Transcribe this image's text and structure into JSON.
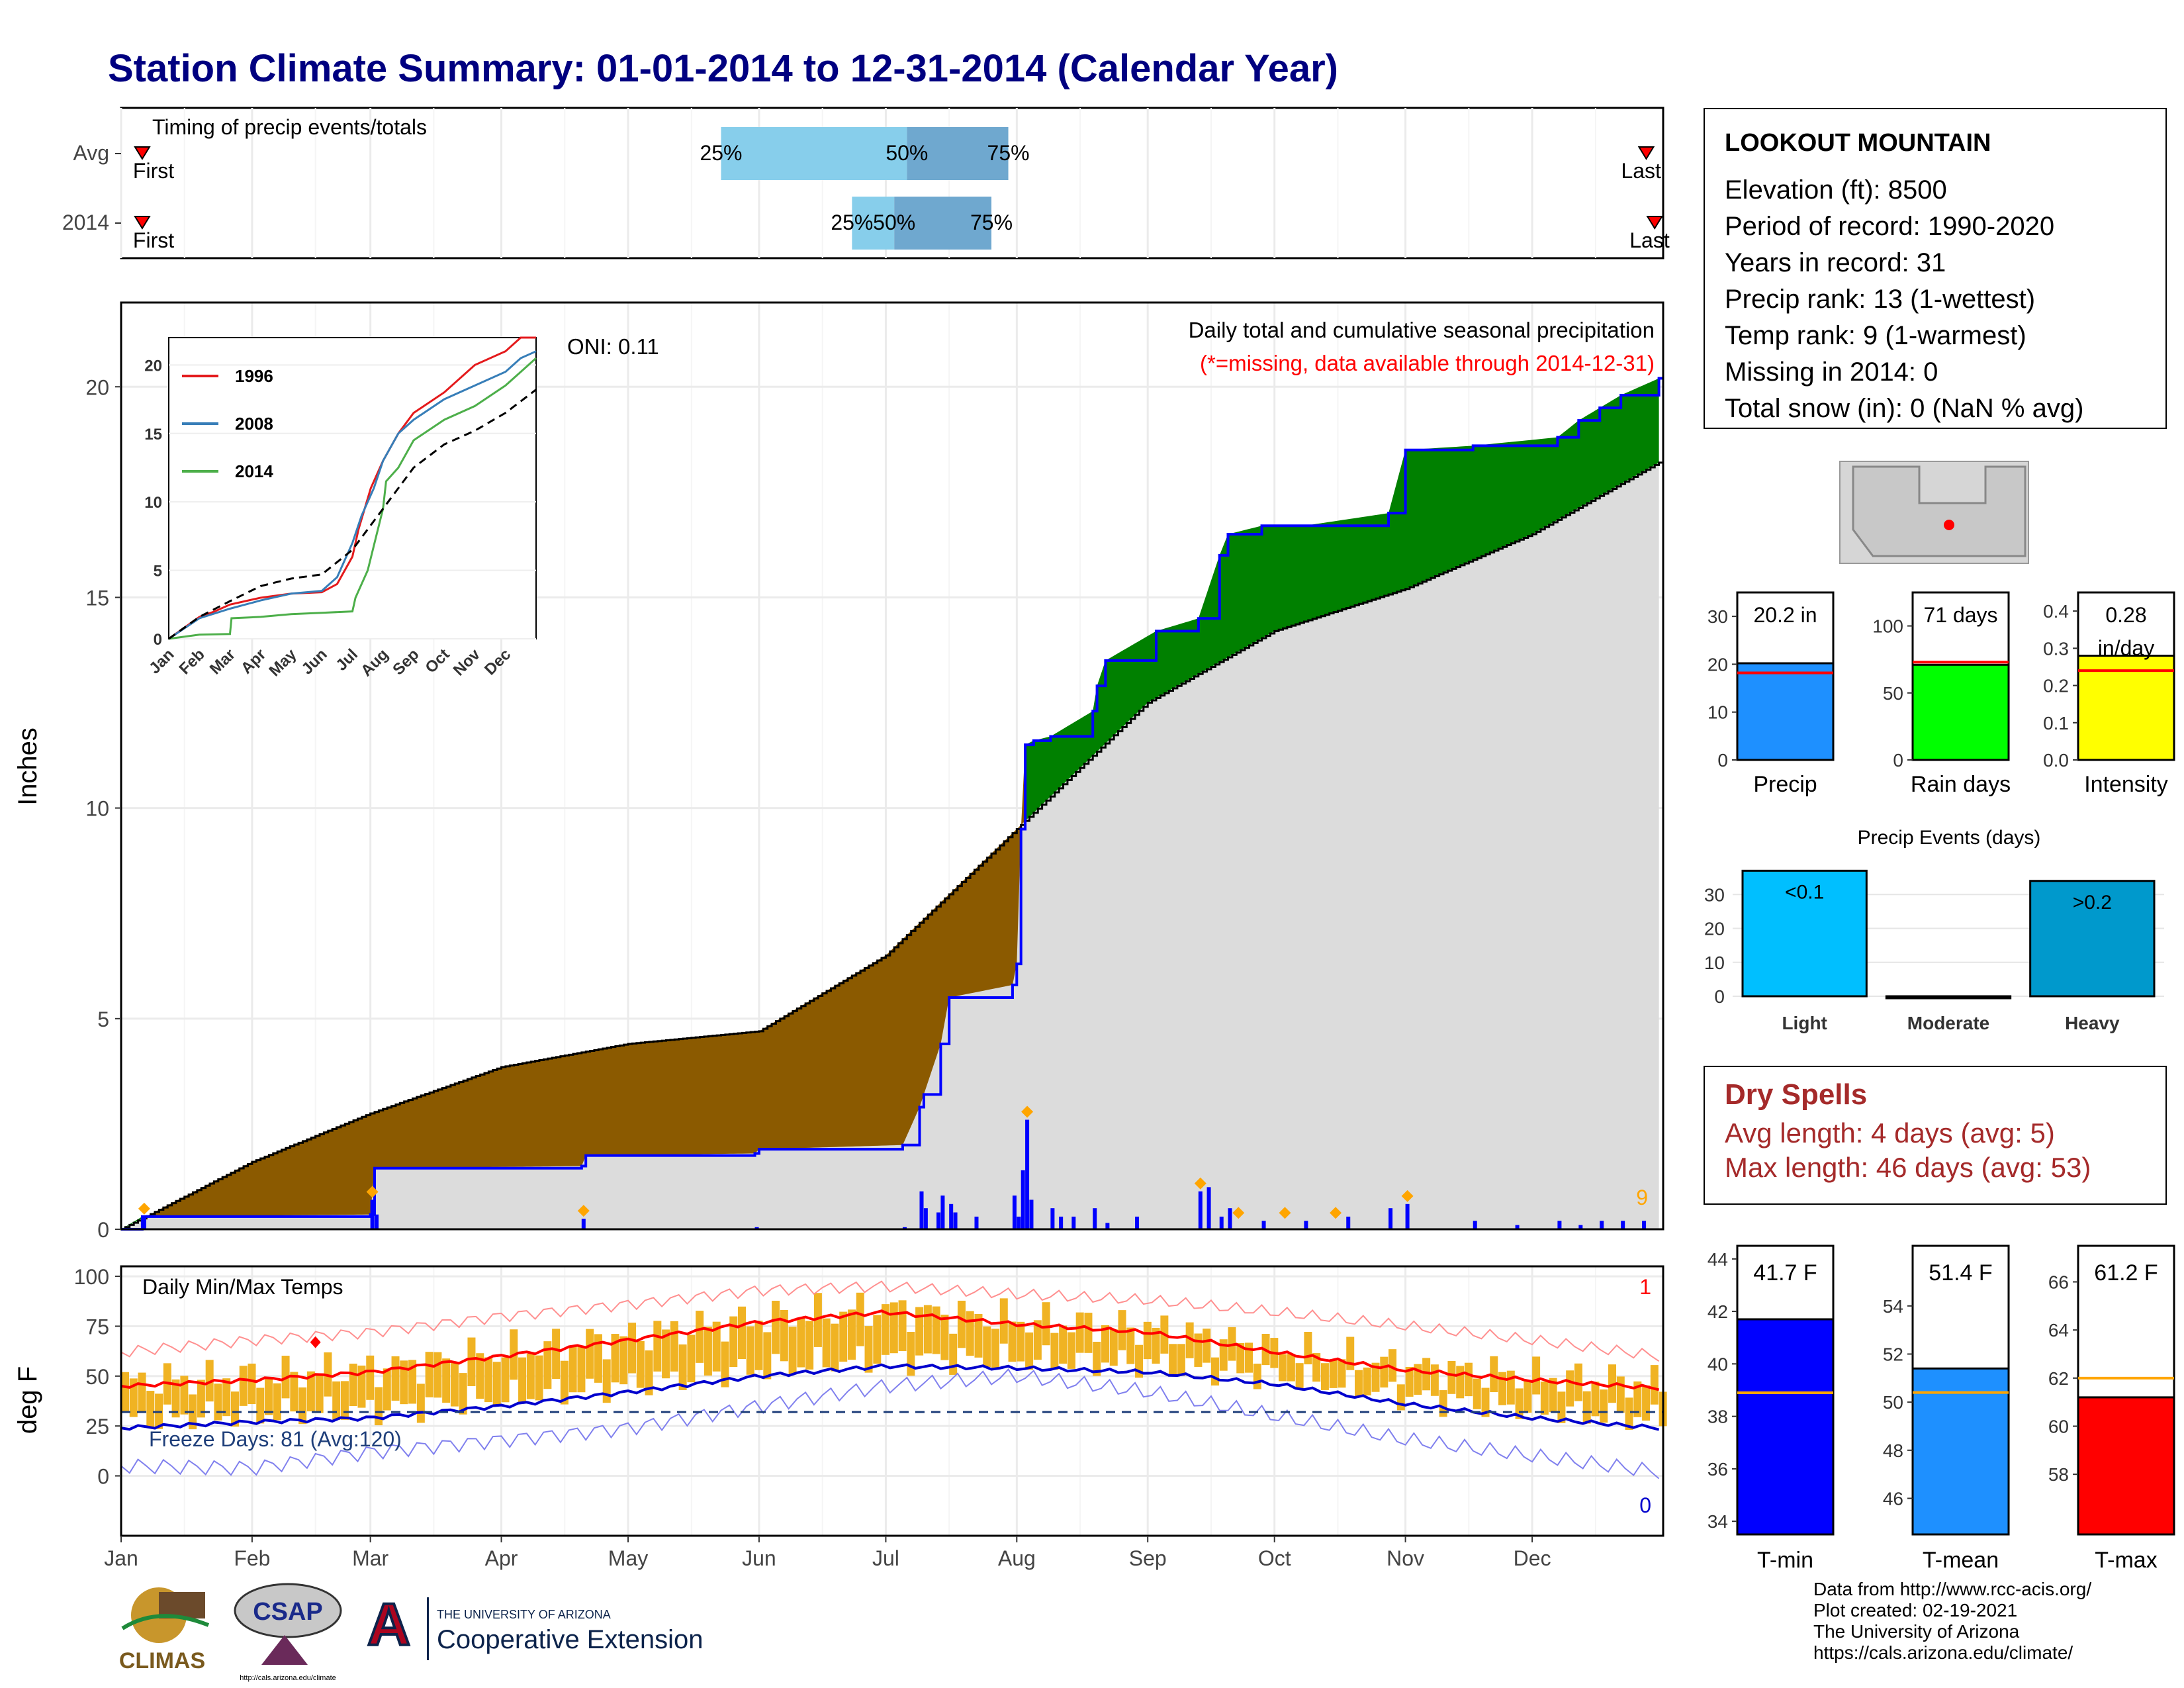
{
  "title": "Station Climate Summary: 01-01-2014 to 12-31-2014 (Calendar Year)",
  "timing": {
    "caption": "Timing of precip events/totals",
    "rows": [
      {
        "label": "Avg",
        "first": "First",
        "last": "Last",
        "p25": "2014-05-23",
        "p50": "2014-07-06",
        "p75": "2014-07-30",
        "first_date": "2014-01-06",
        "last_date": "2014-12-28"
      },
      {
        "label": "2014",
        "first": "First",
        "last": "Last",
        "p25": "2014-06-23",
        "p50": "2014-07-03",
        "p75": "2014-07-26",
        "first_date": "2014-01-06",
        "last_date": "2014-12-30"
      }
    ],
    "pct_labels": [
      "25%",
      "50%",
      "75%"
    ],
    "light_color": "#87ceeb",
    "dark_color": "#6fa8cf"
  },
  "precip_panel": {
    "ylabel": "Inches",
    "yticks": [
      0,
      5,
      10,
      15,
      20
    ],
    "ylim": [
      0,
      22
    ],
    "caption1": "Daily total and cumulative seasonal precipitation",
    "caption2": "(*=missing, data available through 2014-12-31)",
    "oni": "ONI: 0.11",
    "count_label": "9",
    "colors": {
      "above": "#008000",
      "below": "#8b5a00",
      "normal_fill": "#dcdcdc",
      "obs_line": "#0000ff",
      "bars": "#0000ff",
      "markers": "#ffa500"
    },
    "normal_cumulative": {
      "months": [
        0,
        1,
        2,
        3,
        4,
        5,
        6,
        7,
        8,
        9,
        10,
        11,
        12
      ],
      "values": [
        0,
        1.6,
        2.75,
        3.85,
        4.4,
        4.7,
        6.5,
        9.5,
        12.5,
        14.2,
        15.2,
        16.5,
        18.2
      ]
    },
    "observed_cumulative": {
      "days": [
        0,
        5,
        59,
        60,
        109,
        110,
        150,
        151,
        185,
        189,
        190,
        194,
        196,
        211,
        212,
        213,
        214,
        216,
        220,
        230,
        231,
        233,
        245,
        255,
        260,
        262,
        270,
        280,
        300,
        304,
        320,
        340,
        345,
        350,
        355,
        364
      ],
      "values": [
        0,
        0.3,
        0.35,
        1.45,
        1.5,
        1.75,
        1.8,
        1.9,
        2.0,
        2.9,
        3.2,
        4.4,
        5.5,
        5.8,
        6.3,
        9.5,
        11.5,
        11.6,
        11.7,
        12.3,
        12.9,
        13.5,
        14.2,
        14.5,
        16.0,
        16.5,
        16.7,
        16.7,
        17.0,
        18.5,
        18.6,
        18.8,
        19.2,
        19.5,
        19.8,
        20.2
      ]
    },
    "daily_bars": {
      "days": [
        5,
        59,
        60,
        109,
        150,
        185,
        189,
        190,
        193,
        194,
        196,
        197,
        202,
        211,
        212,
        213,
        214,
        215,
        220,
        222,
        225,
        230,
        233,
        240,
        255,
        257,
        260,
        262,
        270,
        280,
        290,
        300,
        304,
        320,
        330,
        340,
        345,
        350,
        355,
        360
      ],
      "values": [
        0.3,
        0.7,
        0.35,
        0.25,
        0.05,
        0.05,
        0.9,
        0.5,
        0.4,
        0.8,
        0.6,
        0.4,
        0.3,
        0.8,
        0.3,
        1.4,
        2.6,
        0.7,
        0.5,
        0.3,
        0.3,
        0.5,
        0.15,
        0.3,
        0.9,
        1.0,
        0.3,
        0.5,
        0.2,
        0.2,
        0.3,
        0.5,
        0.6,
        0.2,
        0.1,
        0.2,
        0.1,
        0.2,
        0.2,
        0.2
      ]
    },
    "marker_days": [
      5,
      59,
      109,
      214,
      255,
      264,
      275,
      287,
      304
    ]
  },
  "inset": {
    "yticks": [
      0,
      5,
      10,
      15,
      20
    ],
    "xlabels": [
      "Jan",
      "Feb",
      "Mar",
      "Apr",
      "May",
      "Jun",
      "Jul",
      "Aug",
      "Sep",
      "Oct",
      "Nov",
      "Dec"
    ],
    "legend": [
      {
        "name": "1996",
        "color": "#e41a1c"
      },
      {
        "name": "2008",
        "color": "#377eb8"
      },
      {
        "name": "2014",
        "color": "#4daf4a"
      }
    ],
    "series": [
      {
        "name": "1996",
        "x": [
          0,
          0.5,
          1,
          1.5,
          2,
          3,
          4,
          5,
          5.5,
          6,
          6.2,
          6.6,
          7,
          7.5,
          8,
          9,
          10,
          11,
          11.5,
          12
        ],
        "values": [
          0,
          0.8,
          1.6,
          2,
          2.5,
          3,
          3.3,
          3.4,
          4,
          6,
          8,
          11,
          13,
          15,
          16.5,
          18,
          20,
          21,
          22,
          22
        ]
      },
      {
        "name": "2008",
        "x": [
          0,
          1,
          2,
          3,
          4,
          5,
          5.5,
          6,
          6.3,
          6.7,
          7,
          7.5,
          8,
          9,
          10,
          11,
          11.5,
          12
        ],
        "values": [
          0,
          1.5,
          2.2,
          2.8,
          3.3,
          3.5,
          4.5,
          7,
          9,
          11,
          13,
          15,
          16,
          17.5,
          18.5,
          19.5,
          20.5,
          21
        ]
      },
      {
        "name": "2014",
        "x": [
          0,
          1,
          2,
          2.05,
          3,
          4,
          5,
          6,
          6.1,
          6.5,
          7,
          7.1,
          7.5,
          8,
          9,
          10,
          11,
          11.5,
          12
        ],
        "values": [
          0,
          0.3,
          0.35,
          1.5,
          1.6,
          1.8,
          1.9,
          2,
          3,
          5,
          9.5,
          11.5,
          12.5,
          14.5,
          16,
          17,
          18.5,
          19.5,
          20.5
        ]
      },
      {
        "name": "Avg",
        "x": [
          0,
          1,
          2,
          3,
          4,
          5,
          6,
          7,
          8,
          9,
          10,
          11,
          12
        ],
        "values": [
          0,
          1.6,
          2.75,
          3.85,
          4.4,
          4.7,
          6.5,
          9.5,
          12.5,
          14.2,
          15.2,
          16.5,
          18.2
        ]
      }
    ]
  },
  "temp_panel": {
    "ylabel": "deg F",
    "caption": "Daily Min/Max Temps",
    "yticks": [
      0,
      25,
      50,
      75,
      100
    ],
    "freeze_label": "Freeze Days: 81 (Avg:120)",
    "freeze_line": 32,
    "count_high": "1",
    "count_low": "0",
    "colors": {
      "bars": "#f0b323",
      "max_normal": "#ff0000",
      "min_normal": "#0000cd",
      "max_record": "#ff9090",
      "min_record": "#8080ee",
      "freeze": "#1f3f7a"
    },
    "normal_max": {
      "days": [
        0,
        31,
        59,
        90,
        120,
        151,
        181,
        212,
        243,
        273,
        304,
        334,
        364
      ],
      "values": [
        45,
        48,
        52,
        60,
        68,
        77,
        82,
        76,
        72,
        62,
        53,
        48,
        44
      ]
    },
    "normal_min": {
      "days": [
        0,
        31,
        59,
        90,
        120,
        151,
        181,
        212,
        243,
        273,
        304,
        334,
        364
      ],
      "values": [
        24,
        27,
        29,
        35,
        42,
        50,
        55,
        54,
        52,
        46,
        36,
        29,
        24
      ]
    },
    "record_max": {
      "days": [
        0,
        31,
        59,
        90,
        120,
        151,
        181,
        212,
        243,
        273,
        304,
        334,
        364
      ],
      "values": [
        62,
        68,
        72,
        80,
        86,
        93,
        95,
        91,
        88,
        82,
        75,
        68,
        60
      ]
    },
    "record_min": {
      "days": [
        0,
        31,
        59,
        90,
        120,
        151,
        181,
        212,
        243,
        273,
        304,
        334,
        364
      ],
      "values": [
        5,
        4,
        12,
        18,
        24,
        35,
        45,
        50,
        42,
        30,
        18,
        10,
        2
      ]
    }
  },
  "xaxis_months": [
    "Jan",
    "Feb",
    "Mar",
    "Apr",
    "May",
    "Jun",
    "Jul",
    "Aug",
    "Sep",
    "Oct",
    "Nov",
    "Dec"
  ],
  "station": {
    "name": "LOOKOUT MOUNTAIN",
    "lines": [
      "Elevation (ft): 8500",
      "Period of record: 1990-2020",
      "Years in record: 31",
      "Precip rank: 13 (1-wettest)",
      "Temp rank: 9 (1-warmest)",
      "Missing in 2014: 0",
      "Total snow (in): 0 (NaN % avg)"
    ]
  },
  "summary_bars": [
    {
      "name": "Precip",
      "label": "20.2 in",
      "value": 20.2,
      "normal": 18.2,
      "ymax": 35,
      "yticks": [
        0,
        10,
        20,
        30
      ],
      "color": "#1e90ff"
    },
    {
      "name": "Rain days",
      "label": "71 days",
      "value": 71,
      "normal": 73,
      "ymax": 125,
      "yticks": [
        0,
        50,
        100
      ],
      "color": "#00ff00"
    },
    {
      "name": "Intensity",
      "label": "0.28 in/day",
      "label_line1": "0.28",
      "label_line2": "in/day",
      "value": 0.28,
      "normal": 0.24,
      "ymax": 0.45,
      "yticks": [
        0.0,
        0.1,
        0.2,
        0.3,
        0.4
      ],
      "color": "#ffff00"
    }
  ],
  "events": {
    "title": "Precip Events (days)",
    "yticks": [
      0,
      10,
      20,
      30
    ],
    "categories": [
      "Light",
      "Moderate",
      "Heavy"
    ],
    "values": [
      37,
      0,
      34
    ],
    "labels": [
      "<0.1",
      "",
      ">0.2"
    ],
    "colors": [
      "#00bfff",
      "#00bfff",
      "#0099cc"
    ]
  },
  "dry_spells": {
    "title": "Dry Spells",
    "avg": "Avg length: 4 days (avg: 5)",
    "max": "Max length: 46 days (avg: 53)"
  },
  "temp_bars": [
    {
      "name": "T-min",
      "label": "41.7 F",
      "value": 41.7,
      "normal": 38.9,
      "ymin": 33.5,
      "ymax": 44.5,
      "yticks": [
        34,
        36,
        38,
        40,
        42,
        44
      ],
      "color": "#0000ff"
    },
    {
      "name": "T-mean",
      "label": "51.4 F",
      "value": 51.4,
      "normal": 50.4,
      "ymin": 44.5,
      "ymax": 56.5,
      "yticks": [
        46,
        48,
        50,
        52,
        54
      ],
      "color": "#1e90ff"
    },
    {
      "name": "T-max",
      "label": "61.2 F",
      "value": 61.2,
      "normal": 62.0,
      "ymin": 55.5,
      "ymax": 67.5,
      "yticks": [
        58,
        60,
        62,
        64,
        66
      ],
      "color": "#ff0000"
    }
  ],
  "credits": [
    "Data from http://www.rcc-acis.org/",
    "Plot created: 02-19-2021",
    "The University of Arizona",
    "https://cals.arizona.edu/climate/"
  ],
  "logos": {
    "climas": "CLIMAS",
    "csap": "CSAP",
    "csap_url": "http://cals.arizona.edu/climate",
    "ua_line1": "THE UNIVERSITY OF ARIZONA",
    "ua_line2": "Cooperative Extension"
  }
}
